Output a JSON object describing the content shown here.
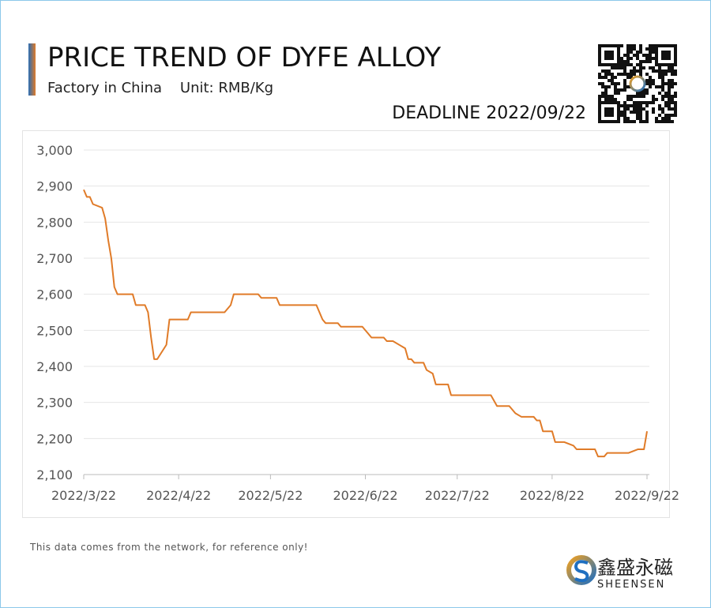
{
  "chart_data": {
    "type": "line",
    "title": "PRICE TREND OF DYFE ALLOY",
    "subtitle": "Factory in China    Unit: RMB/Kg",
    "deadline": "DEADLINE 2022/09/22",
    "note": "This data comes from the network, for reference only!",
    "brand_name": "鑫盛永磁",
    "brand_latin": "SHEENSEN",
    "x": [
      "2022/3/22",
      "2022/3/23",
      "2022/3/24",
      "2022/3/25",
      "2022/3/28",
      "2022/3/29",
      "2022/3/30",
      "2022/3/31",
      "2022/4/1",
      "2022/4/2",
      "2022/4/7",
      "2022/4/8",
      "2022/4/11",
      "2022/4/12",
      "2022/4/13",
      "2022/4/14",
      "2022/4/15",
      "2022/4/18",
      "2022/4/19",
      "2022/4/25",
      "2022/4/26",
      "2022/5/7",
      "2022/5/9",
      "2022/5/10",
      "2022/5/18",
      "2022/5/19",
      "2022/5/24",
      "2022/5/25",
      "2022/6/6",
      "2022/6/7",
      "2022/6/8",
      "2022/6/9",
      "2022/6/13",
      "2022/6/14",
      "2022/6/21",
      "2022/6/23",
      "2022/6/24",
      "2022/6/28",
      "2022/6/29",
      "2022/7/1",
      "2022/7/5",
      "2022/7/6",
      "2022/7/7",
      "2022/7/8",
      "2022/7/11",
      "2022/7/12",
      "2022/7/14",
      "2022/7/15",
      "2022/7/19",
      "2022/7/20",
      "2022/8/2",
      "2022/8/4",
      "2022/8/8",
      "2022/8/10",
      "2022/8/12",
      "2022/8/16",
      "2022/8/17",
      "2022/8/18",
      "2022/8/19",
      "2022/8/22",
      "2022/8/23",
      "2022/8/26",
      "2022/8/29",
      "2022/8/30",
      "2022/9/5",
      "2022/9/6",
      "2022/9/8",
      "2022/9/9",
      "2022/9/16",
      "2022/9/19",
      "2022/9/21",
      "2022/9/22"
    ],
    "series": [
      {
        "name": "DyFe Alloy",
        "color": "#e07b28",
        "values": [
          2890,
          2870,
          2870,
          2850,
          2840,
          2810,
          2750,
          2700,
          2620,
          2600,
          2600,
          2570,
          2570,
          2550,
          2480,
          2420,
          2420,
          2460,
          2530,
          2530,
          2550,
          2550,
          2570,
          2600,
          2600,
          2590,
          2590,
          2570,
          2570,
          2550,
          2530,
          2520,
          2520,
          2510,
          2510,
          2490,
          2480,
          2480,
          2470,
          2470,
          2450,
          2420,
          2420,
          2410,
          2410,
          2390,
          2380,
          2350,
          2350,
          2320,
          2320,
          2290,
          2290,
          2270,
          2260,
          2260,
          2250,
          2250,
          2220,
          2220,
          2190,
          2190,
          2180,
          2170,
          2170,
          2150,
          2150,
          2160,
          2160,
          2170,
          2170,
          2220
        ]
      }
    ],
    "xlim": [
      "2022/3/22",
      "2022/9/22"
    ],
    "xticks": [
      "2022/3/22",
      "2022/4/22",
      "2022/5/22",
      "2022/6/22",
      "2022/7/22",
      "2022/8/22",
      "2022/9/22"
    ],
    "ylim": [
      2100,
      3000
    ],
    "yticks": [
      {
        "value": 2100,
        "label": "2,100"
      },
      {
        "value": 2200,
        "label": "2,200"
      },
      {
        "value": 2300,
        "label": "2,300"
      },
      {
        "value": 2400,
        "label": "2,400"
      },
      {
        "value": 2500,
        "label": "2,500"
      },
      {
        "value": 2600,
        "label": "2,600"
      },
      {
        "value": 2700,
        "label": "2,700"
      },
      {
        "value": 2800,
        "label": "2,800"
      },
      {
        "value": 2900,
        "label": "2,900"
      },
      {
        "value": 3000,
        "label": "3,000"
      }
    ],
    "grid": true
  }
}
